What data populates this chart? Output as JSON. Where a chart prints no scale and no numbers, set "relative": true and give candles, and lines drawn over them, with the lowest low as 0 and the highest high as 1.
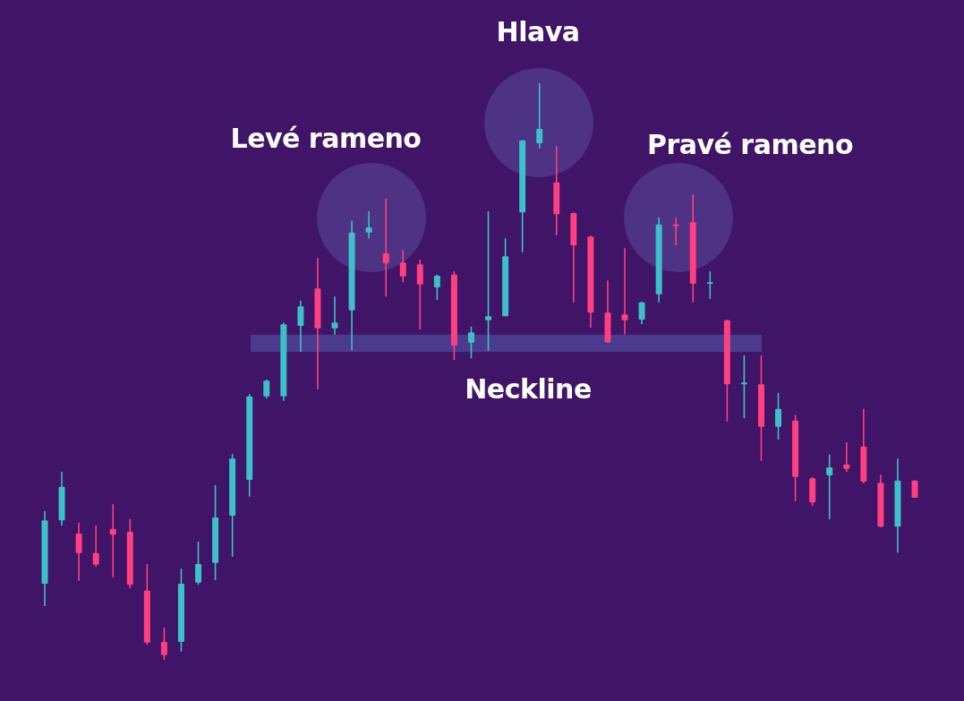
{
  "chart_data": {
    "type": "candlestick",
    "relative": true,
    "categories": [
      null,
      null,
      null,
      null,
      null,
      null,
      null,
      null,
      null,
      null,
      null,
      null,
      null,
      null,
      null,
      null,
      null,
      null,
      null,
      null,
      null,
      null,
      null,
      null,
      null,
      null,
      null,
      null,
      null,
      null,
      null,
      null,
      null,
      null,
      null,
      null,
      null,
      null,
      null,
      null,
      null,
      null,
      null,
      null,
      null,
      null,
      null,
      null,
      null,
      null,
      null,
      null
    ],
    "ohlc": [
      [
        0.132,
        0.258,
        0.093,
        0.242
      ],
      [
        0.242,
        0.326,
        0.233,
        0.3
      ],
      [
        0.219,
        0.238,
        0.137,
        0.185
      ],
      [
        0.185,
        0.233,
        0.161,
        0.165
      ],
      [
        0.227,
        0.27,
        0.143,
        0.217
      ],
      [
        0.222,
        0.244,
        0.124,
        0.13
      ],
      [
        0.12,
        0.166,
        0.026,
        0.03
      ],
      [
        0.031,
        0.056,
        0,
        0.008
      ],
      [
        0.031,
        0.158,
        0.014,
        0.132
      ],
      [
        0.134,
        0.205,
        0.13,
        0.166
      ],
      [
        0.168,
        0.303,
        0.138,
        0.247
      ],
      [
        0.25,
        0.357,
        0.179,
        0.349
      ],
      [
        0.312,
        0.461,
        0.283,
        0.457
      ],
      [
        0.457,
        0.486,
        0.453,
        0.484
      ],
      [
        0.457,
        0.585,
        0.449,
        0.582
      ],
      [
        0.579,
        0.623,
        0.534,
        0.613
      ],
      [
        0.644,
        0.697,
        0.469,
        0.575
      ],
      [
        0.575,
        0.63,
        0.564,
        0.585
      ],
      [
        0.606,
        0.762,
        0.537,
        0.741
      ],
      [
        0.741,
        0.778,
        0.731,
        0.75
      ],
      [
        0.705,
        0.8,
        0.63,
        0.688
      ],
      [
        0.689,
        0.711,
        0.655,
        0.665
      ],
      [
        0.686,
        0.694,
        0.573,
        0.651
      ],
      [
        0.646,
        0.668,
        0.624,
        0.666
      ],
      [
        0.668,
        0.674,
        0.52,
        0.545
      ],
      [
        0.55,
        0.578,
        0.523,
        0.568
      ],
      [
        0.589,
        0.778,
        0.536,
        0.596
      ],
      [
        0.596,
        0.731,
        0.596,
        0.7
      ],
      [
        0.776,
        0.901,
        0.707,
        0.901
      ],
      [
        0.896,
        1,
        0.887,
        0.921
      ],
      [
        0.828,
        0.891,
        0.736,
        0.773
      ],
      [
        0.775,
        0.776,
        0.62,
        0.719
      ],
      [
        0.734,
        0.736,
        0.576,
        0.602
      ],
      [
        0.602,
        0.658,
        0.55,
        0.551
      ],
      [
        0.599,
        0.714,
        0.564,
        0.589
      ],
      [
        0.59,
        0.621,
        0.582,
        0.62
      ],
      [
        0.634,
        0.767,
        0.62,
        0.755
      ],
      [
        0.755,
        0.767,
        0.719,
        0.752
      ],
      [
        0.759,
        0.807,
        0.62,
        0.652
      ],
      [
        0.652,
        0.674,
        0.626,
        0.655
      ],
      [
        0.589,
        0.59,
        0.413,
        0.478
      ],
      [
        0.478,
        0.528,
        0.419,
        0.481
      ],
      [
        0.478,
        0.528,
        0.345,
        0.404
      ],
      [
        0.404,
        0.463,
        0.382,
        0.435
      ],
      [
        0.415,
        0.425,
        0.275,
        0.317
      ],
      [
        0.315,
        0.317,
        0.267,
        0.273
      ],
      [
        0.32,
        0.356,
        0.244,
        0.334
      ],
      [
        0.339,
        0.377,
        0.326,
        0.331
      ],
      [
        0.37,
        0.435,
        0.306,
        0.309
      ],
      [
        0.307,
        0.321,
        0.23,
        0.231
      ],
      [
        0.231,
        0.349,
        0.186,
        0.311
      ],
      [
        0.311,
        0.311,
        0.281,
        0.281
      ]
    ],
    "colors": [
      "#3cc0c9",
      "#3cc0c9",
      "#ff3f80",
      "#ff3f80",
      "#ff3f80",
      "#ff3f80",
      "#ff3f80",
      "#ff3f80",
      "#3cc0c9",
      "#3cc0c9",
      "#3cc0c9",
      "#3cc0c9",
      "#3cc0c9",
      "#3cc0c9",
      "#3cc0c9",
      "#3cc0c9",
      "#ff3f80",
      "#3cc0c9",
      "#3cc0c9",
      "#3cc0c9",
      "#ff3f80",
      "#ff3f80",
      "#ff3f80",
      "#3cc0c9",
      "#ff3f80",
      "#3cc0c9",
      "#3cc0c9",
      "#3cc0c9",
      "#3cc0c9",
      "#3cc0c9",
      "#ff3f80",
      "#ff3f80",
      "#ff3f80",
      "#ff3f80",
      "#ff3f80",
      "#3cc0c9",
      "#3cc0c9",
      "#ff3f80",
      "#ff3f80",
      "#3cc0c9",
      "#ff3f80",
      "#3cc0c9",
      "#ff3f80",
      "#3cc0c9",
      "#ff3f80",
      "#ff3f80",
      "#3cc0c9",
      "#ff3f80",
      "#ff3f80",
      "#ff3f80",
      "#3cc0c9",
      "#ff3f80"
    ],
    "bands": [
      {
        "axis": "y",
        "from": 0.534,
        "to": 0.564,
        "label": "Neckline",
        "color": "#4a3b8f"
      }
    ],
    "annotations": [
      "Hlava",
      "Levé rameno",
      "Pravé rameno"
    ]
  }
}
